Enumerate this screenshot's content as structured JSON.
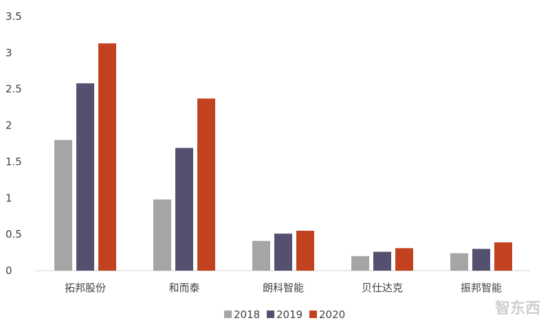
{
  "chart_data": {
    "type": "bar",
    "categories": [
      "拓邦股份",
      "和而泰",
      "朗科智能",
      "贝仕达克",
      "振邦智能"
    ],
    "series": [
      {
        "name": "2018",
        "color": "#a5a5a5",
        "values": [
          1.8,
          0.98,
          0.41,
          0.2,
          0.24
        ]
      },
      {
        "name": "2019",
        "color": "#54506f",
        "values": [
          2.58,
          1.69,
          0.51,
          0.26,
          0.3
        ]
      },
      {
        "name": "2020",
        "color": "#c2421f",
        "values": [
          3.13,
          2.37,
          0.55,
          0.31,
          0.39
        ]
      }
    ],
    "ylim": [
      0,
      3.5
    ],
    "yticks": [
      "0",
      "0.5",
      "1",
      "1.5",
      "2",
      "2.5",
      "3",
      "3.5"
    ],
    "grid": false,
    "legend_position": "bottom"
  },
  "watermark": "智东西"
}
